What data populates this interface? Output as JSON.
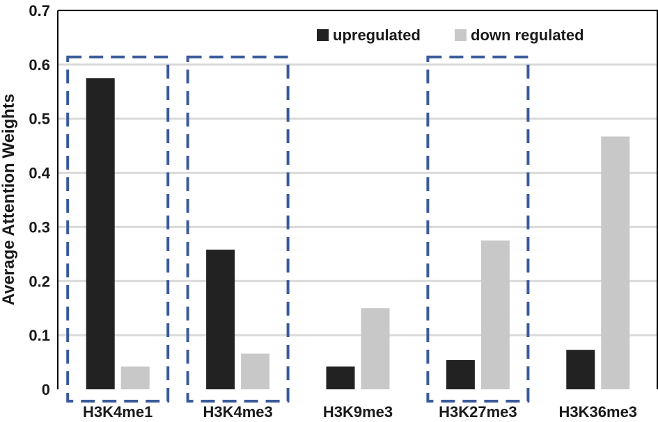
{
  "chart_data": {
    "type": "bar",
    "title": "",
    "xlabel": "",
    "ylabel": "Average Attention Weights",
    "ylim": [
      0,
      0.7
    ],
    "yticks": [
      0,
      0.1,
      0.2,
      0.3,
      0.4,
      0.5,
      0.6,
      0.7
    ],
    "ytick_labels": [
      "0",
      "0.1",
      "0.2",
      "0.3",
      "0.4",
      "0.5",
      "0.6",
      "0.7"
    ],
    "categories": [
      "H3K4me1",
      "H3K4me3",
      "H3K9me3",
      "H3K27me3",
      "H3K36me3"
    ],
    "series": [
      {
        "name": "upregulated",
        "color": "#222222",
        "values": [
          0.575,
          0.258,
          0.042,
          0.054,
          0.073
        ]
      },
      {
        "name": "down regulated",
        "color": "#c8c8c8",
        "values": [
          0.042,
          0.066,
          0.15,
          0.275,
          0.467
        ]
      }
    ],
    "highlighted_categories": [
      "H3K4me1",
      "H3K4me3",
      "H3K27me3"
    ],
    "highlight_color": "#3a5a9a",
    "grid": true,
    "grid_color": "#d9d9d9",
    "legend": {
      "placement": "top-right"
    }
  }
}
